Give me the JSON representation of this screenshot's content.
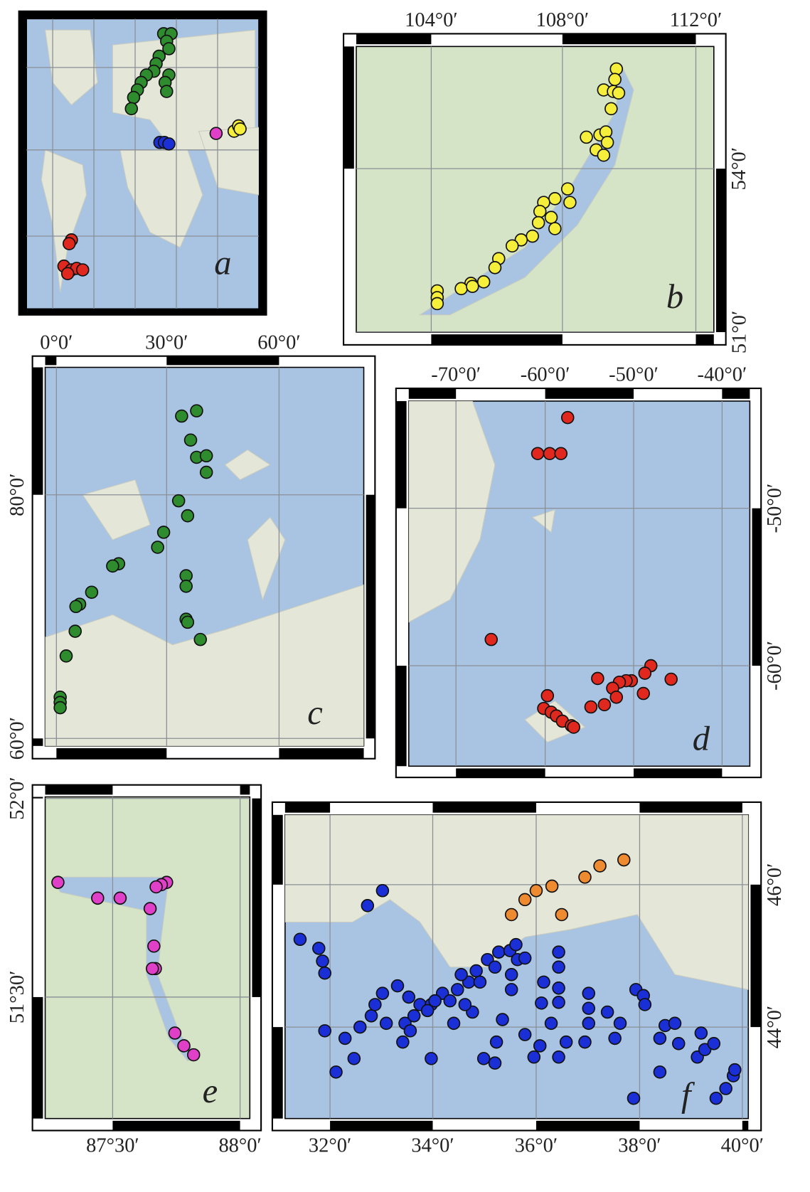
{
  "panels": [
    {
      "label": "a"
    },
    {
      "label": "b",
      "top_labels": [
        "104°0′",
        "108°0′",
        "112°0′"
      ],
      "right_labels": [
        "54°0′",
        "51°0′"
      ]
    },
    {
      "label": "c",
      "top_labels": [
        "0°0′",
        "30°0′",
        "60°0′"
      ],
      "left_labels": [
        "80°0′",
        "60°0′"
      ]
    },
    {
      "label": "d",
      "top_labels": [
        "-70°0′",
        "-60°0′",
        "-50°0′",
        "-40°0′"
      ],
      "right_labels": [
        "-50°0′",
        "-60°0′"
      ]
    },
    {
      "label": "e",
      "left_labels": [
        "52°0′",
        "51°30′"
      ],
      "bottom_labels": [
        "87°30′",
        "88°0′"
      ]
    },
    {
      "label": "f",
      "bottom_labels": [
        "32°0′",
        "34°0′",
        "36°0′",
        "38°0′",
        "40°0′"
      ],
      "right_labels": [
        "46°0′",
        "44°0′"
      ]
    }
  ]
}
